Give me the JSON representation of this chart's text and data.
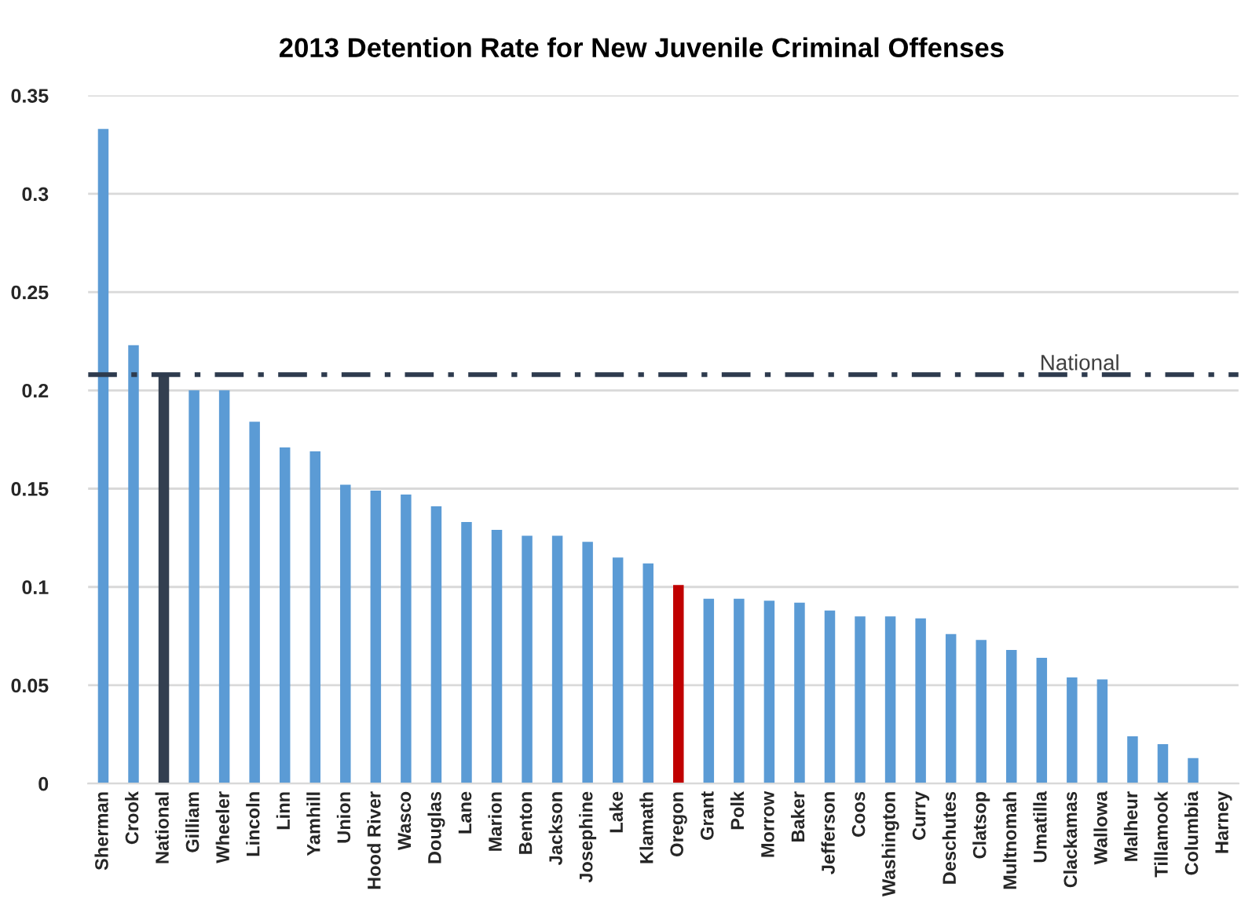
{
  "chart_data": {
    "type": "bar",
    "title": "2013 Detention Rate for New Juvenile Criminal Offenses",
    "categories": [
      "Sherman",
      "Crook",
      "National",
      "Gilliam",
      "Wheeler",
      "Lincoln",
      "Linn",
      "Yamhill",
      "Union",
      "Hood River",
      "Wasco",
      "Douglas",
      "Lane",
      "Marion",
      "Benton",
      "Jackson",
      "Josephine",
      "Lake",
      "Klamath",
      "Oregon",
      "Grant",
      "Polk",
      "Morrow",
      "Baker",
      "Jefferson",
      "Coos",
      "Washington",
      "Curry",
      "Deschutes",
      "Clatsop",
      "Multnomah",
      "Umatilla",
      "Clackamas",
      "Wallowa",
      "Malheur",
      "Tillamook",
      "Columbia",
      "Harney"
    ],
    "values": [
      0.333,
      0.223,
      0.207,
      0.2,
      0.2,
      0.184,
      0.171,
      0.169,
      0.152,
      0.149,
      0.147,
      0.141,
      0.133,
      0.129,
      0.126,
      0.126,
      0.123,
      0.115,
      0.112,
      0.101,
      0.094,
      0.094,
      0.093,
      0.092,
      0.088,
      0.085,
      0.085,
      0.084,
      0.076,
      0.073,
      0.068,
      0.064,
      0.054,
      0.053,
      0.024,
      0.02,
      0.013,
      0
    ],
    "colors": [
      "#5b9bd5",
      "#5b9bd5",
      "#333f50",
      "#5b9bd5",
      "#5b9bd5",
      "#5b9bd5",
      "#5b9bd5",
      "#5b9bd5",
      "#5b9bd5",
      "#5b9bd5",
      "#5b9bd5",
      "#5b9bd5",
      "#5b9bd5",
      "#5b9bd5",
      "#5b9bd5",
      "#5b9bd5",
      "#5b9bd5",
      "#5b9bd5",
      "#5b9bd5",
      "#c00000",
      "#5b9bd5",
      "#5b9bd5",
      "#5b9bd5",
      "#5b9bd5",
      "#5b9bd5",
      "#5b9bd5",
      "#5b9bd5",
      "#5b9bd5",
      "#5b9bd5",
      "#5b9bd5",
      "#5b9bd5",
      "#5b9bd5",
      "#5b9bd5",
      "#5b9bd5",
      "#5b9bd5",
      "#5b9bd5",
      "#5b9bd5",
      "#5b9bd5"
    ],
    "ylim": [
      0,
      0.35
    ],
    "yticks": [
      0,
      0.05,
      0.1,
      0.15,
      0.2,
      0.25,
      0.3,
      0.35
    ],
    "grid": "y",
    "ref_lines": [
      {
        "axis": "y",
        "value": 0.208,
        "label": "National",
        "color": "#2e3b4e",
        "line_style": "dashdot"
      }
    ]
  }
}
